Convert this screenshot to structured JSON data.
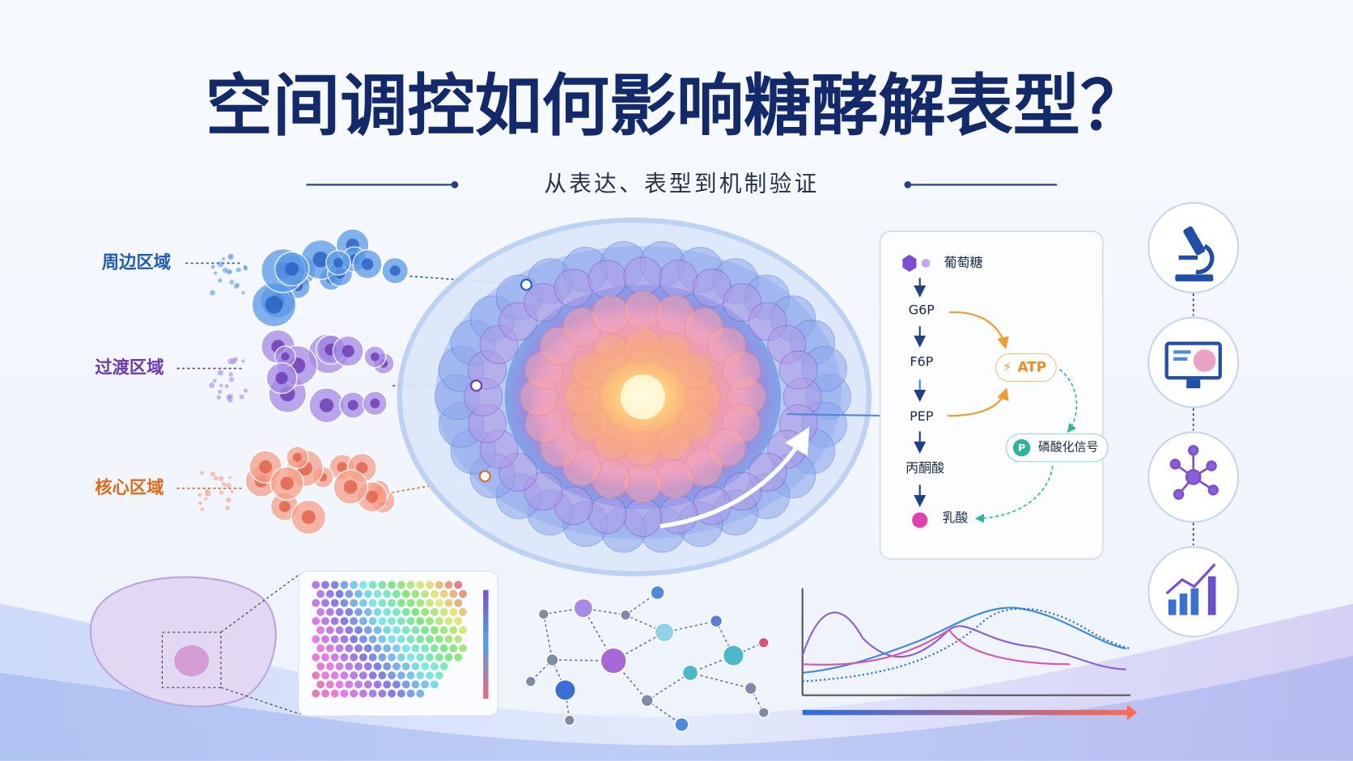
{
  "title": "空间调控如何影响糖酵解表型？",
  "subtitle": "从表达、表型到机制验证",
  "regions": [
    {
      "label": "周边区域"
    },
    {
      "label": "过渡区域"
    },
    {
      "label": "核心区域"
    }
  ],
  "pathway": {
    "steps": [
      "葡萄糖",
      "G6P",
      "F6P",
      "PEP",
      "丙酮酸",
      "乳酸"
    ],
    "atp": "ATP",
    "signal_icon": "P",
    "signal": "磷酸化信号"
  }
}
